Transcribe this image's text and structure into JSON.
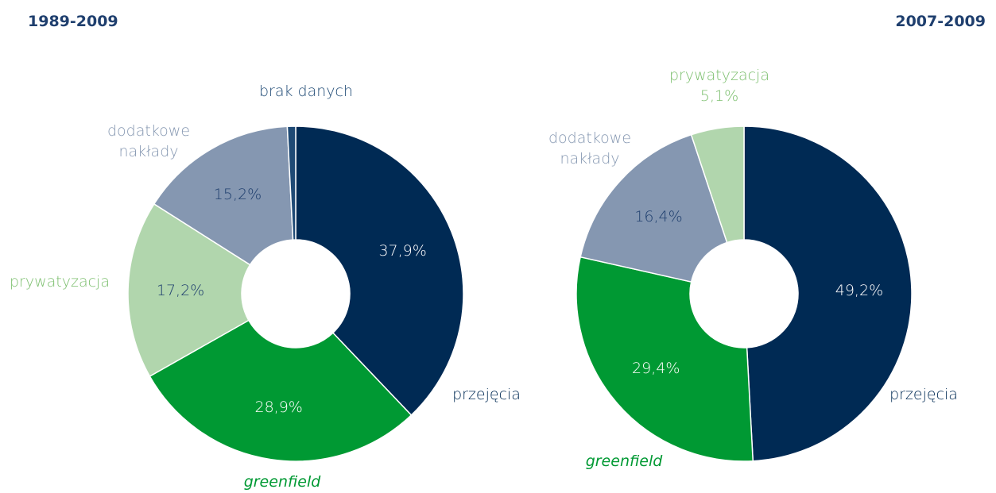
{
  "chart_data": [
    {
      "type": "pie",
      "title": "1989-2009",
      "categories": [
        "przejęcia",
        "greenfield",
        "prywatyzacja",
        "dodatkowe nakłady",
        "brak danych"
      ],
      "values": [
        37.9,
        28.9,
        17.2,
        15.2,
        0.8
      ],
      "value_labels": [
        "37,9%",
        "28,9%",
        "17,2%",
        "15,2%",
        null
      ],
      "colors": [
        "#002a54",
        "#009933",
        "#b1d6ad",
        "#8597b1",
        "#1f4a75"
      ],
      "label_colors": [
        "#002a54",
        "#009933",
        "#7cbf6e",
        "#8597b1",
        "#1f4a75"
      ],
      "donut": true
    },
    {
      "type": "pie",
      "title": "2007-2009",
      "categories": [
        "przejęcia",
        "greenfield",
        "dodatkowe nakłady",
        "prywatyzacja"
      ],
      "values": [
        49.2,
        29.4,
        16.4,
        5.1
      ],
      "value_labels": [
        "49,2%",
        "29,4%",
        "16,4%",
        "5,1%"
      ],
      "colors": [
        "#002a54",
        "#009933",
        "#8597b1",
        "#b1d6ad"
      ],
      "label_colors": [
        "#002a54",
        "#009933",
        "#8597b1",
        "#7cbf6e"
      ],
      "donut": true
    }
  ]
}
